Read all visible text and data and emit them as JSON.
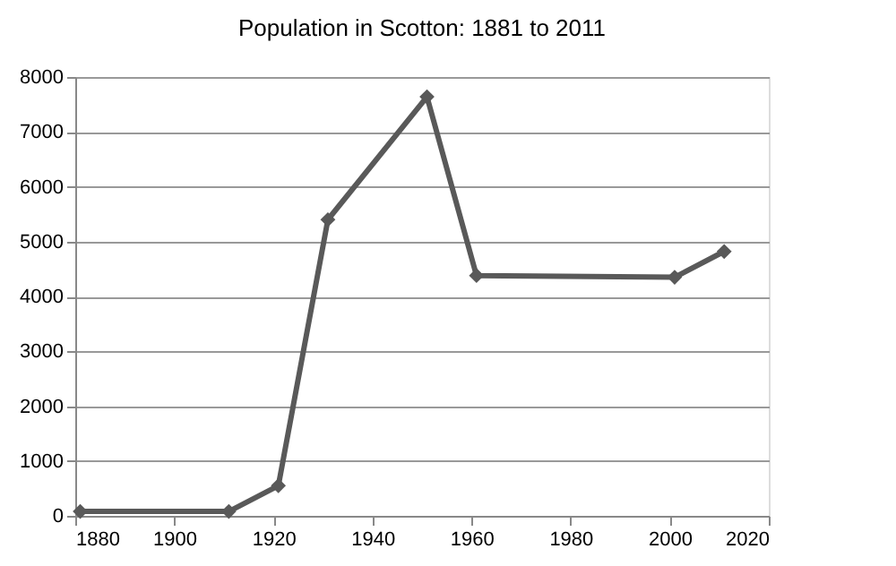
{
  "chart_data": {
    "type": "line",
    "title": "Population in Scotton: 1881 to 2011",
    "x": [
      1881,
      1911,
      1921,
      1931,
      1951,
      1961,
      2001,
      2011
    ],
    "series": [
      {
        "color": "#595959",
        "values": [
          80,
          80,
          550,
          5400,
          7640,
          4380,
          4350,
          4820
        ]
      }
    ],
    "xlim": [
      1880,
      2020
    ],
    "xticks": [
      1880,
      1900,
      1920,
      1940,
      1960,
      1980,
      2000,
      2020
    ],
    "ylim": [
      0,
      8000
    ],
    "yticks": [
      0,
      1000,
      2000,
      3000,
      4000,
      5000,
      6000,
      7000,
      8000
    ],
    "grid": "y",
    "marker": "diamond",
    "line_style": "solid"
  }
}
